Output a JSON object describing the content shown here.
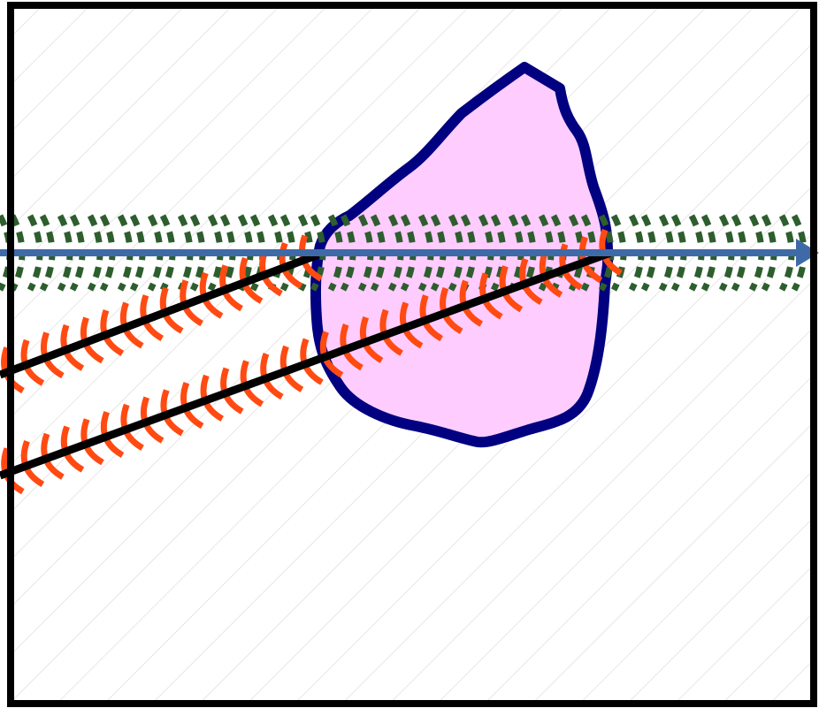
{
  "diagram": {
    "elements": [
      {
        "id": "frame",
        "kind": "rectangle-border",
        "color": "#000000"
      },
      {
        "id": "background",
        "kind": "diagonal-hatch",
        "color": "#d9d9d9"
      },
      {
        "id": "region",
        "kind": "closed-blob",
        "fill": "#ffccff",
        "stroke": "#000080"
      },
      {
        "id": "axis",
        "kind": "arrow-line",
        "color": "#3f6aa8",
        "decoration": "dotted-wave-arcs",
        "decoration_color": "#2e5e2e"
      },
      {
        "id": "ray-upper",
        "kind": "line",
        "color": "#000000",
        "decoration": "arc-hatching",
        "decoration_color": "#ff4a12"
      },
      {
        "id": "ray-lower",
        "kind": "line",
        "color": "#000000",
        "decoration": "arc-hatching",
        "decoration_color": "#ff4a12"
      }
    ],
    "text_labels": []
  }
}
